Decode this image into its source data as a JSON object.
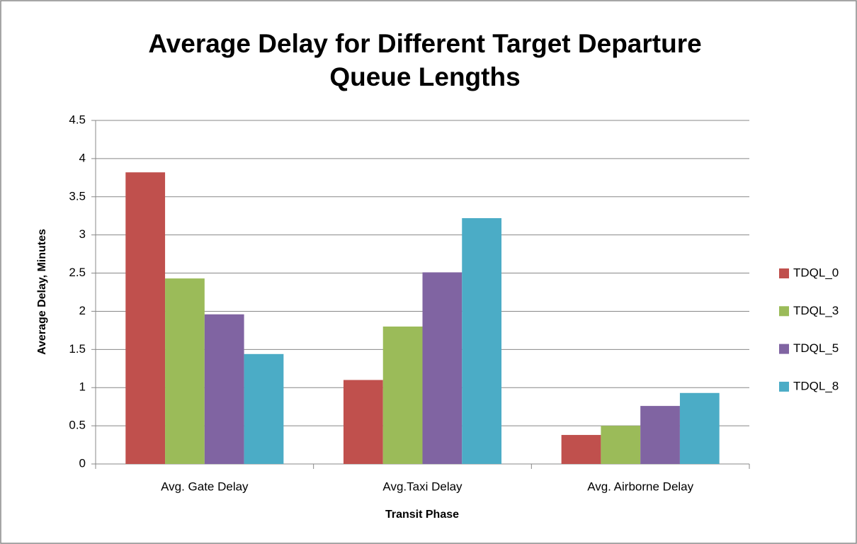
{
  "chart_data": {
    "type": "bar",
    "title": "Average Delay for Different Target Departure Queue Lengths",
    "x_label": "Transit Phase",
    "y_label": "Average Delay, Minutes",
    "categories": [
      "Avg. Gate Delay",
      "Avg.Taxi Delay",
      "Avg. Airborne Delay"
    ],
    "series": [
      {
        "name": "TDQL_0",
        "color": "#c0504d",
        "values": [
          3.82,
          1.1,
          0.38
        ]
      },
      {
        "name": "TDQL_3",
        "color": "#9bbb59",
        "values": [
          2.43,
          1.8,
          0.5
        ]
      },
      {
        "name": "TDQL_5",
        "color": "#8064a2",
        "values": [
          1.96,
          2.51,
          0.76
        ]
      },
      {
        "name": "TDQL_8",
        "color": "#4bacc6",
        "values": [
          1.44,
          3.22,
          0.93
        ]
      }
    ],
    "ylim": [
      0,
      4.5
    ],
    "yticks": [
      0,
      0.5,
      1,
      1.5,
      2,
      2.5,
      3,
      3.5,
      4,
      4.5
    ],
    "grid": true,
    "legend": "right"
  }
}
